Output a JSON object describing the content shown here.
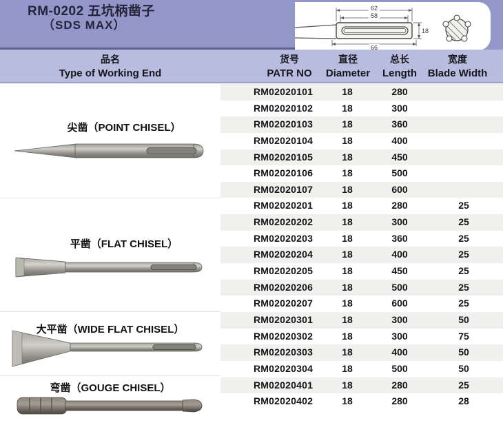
{
  "title": {
    "line1": "RM-0202 五坑柄凿子",
    "line2": "（SDS MAX）"
  },
  "drawing": {
    "name": "sds-max-shank-drawing",
    "dim_outer": "62",
    "dim_inner": "58",
    "dim_total": "66",
    "dim_diameter": "18"
  },
  "header": {
    "product_cn": "品名",
    "product_en": "Type of Working End",
    "partno_cn": "货号",
    "partno_en": "PATR NO",
    "dia_cn": "直径",
    "dia_en": "Diameter",
    "len_cn": "总长",
    "len_en": "Length",
    "bw_cn": "宽度",
    "bw_en": "Blade Width"
  },
  "sections": [
    {
      "label": "尖凿（POINT CHISEL）",
      "type": "point-chisel",
      "rows": [
        [
          "RM02020101",
          "18",
          "280",
          ""
        ],
        [
          "RM02020102",
          "18",
          "300",
          ""
        ],
        [
          "RM02020103",
          "18",
          "360",
          ""
        ],
        [
          "RM02020104",
          "18",
          "400",
          ""
        ],
        [
          "RM02020105",
          "18",
          "450",
          ""
        ],
        [
          "RM02020106",
          "18",
          "500",
          ""
        ],
        [
          "RM02020107",
          "18",
          "600",
          ""
        ]
      ]
    },
    {
      "label": "平凿（FLAT CHISEL）",
      "type": "flat-chisel",
      "rows": [
        [
          "RM02020201",
          "18",
          "280",
          "25"
        ],
        [
          "RM02020202",
          "18",
          "300",
          "25"
        ],
        [
          "RM02020203",
          "18",
          "360",
          "25"
        ],
        [
          "RM02020204",
          "18",
          "400",
          "25"
        ],
        [
          "RM02020205",
          "18",
          "450",
          "25"
        ],
        [
          "RM02020206",
          "18",
          "500",
          "25"
        ],
        [
          "RM02020207",
          "18",
          "600",
          "25"
        ]
      ]
    },
    {
      "label": "大平凿（WIDE FLAT CHISEL）",
      "type": "wide-flat-chisel",
      "rows": [
        [
          "RM02020301",
          "18",
          "300",
          "50"
        ],
        [
          "RM02020302",
          "18",
          "300",
          "75"
        ],
        [
          "RM02020303",
          "18",
          "400",
          "50"
        ],
        [
          "RM02020304",
          "18",
          "500",
          "50"
        ]
      ]
    },
    {
      "label": "弯凿（GOUGE CHISEL）",
      "type": "gouge-chisel",
      "rows": [
        [
          "RM02020401",
          "18",
          "280",
          "25"
        ],
        [
          "RM02020402",
          "18",
          "280",
          "28"
        ]
      ]
    }
  ],
  "colors": {
    "banner": "#9296c9",
    "banner_divider": "#5c608e",
    "header_band": "#b8bcdf",
    "row_stripe": "#f0f0ee",
    "title_text": "#23233a"
  }
}
